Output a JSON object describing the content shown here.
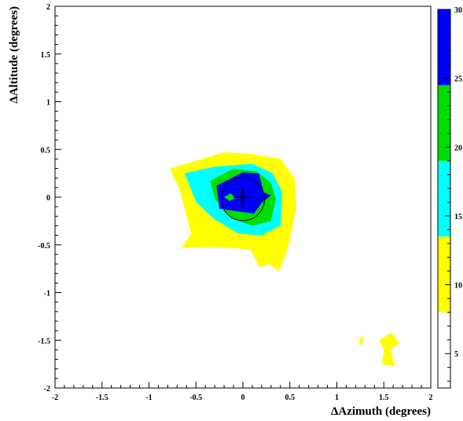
{
  "chart_data": {
    "type": "heatmap",
    "subtype": "filled-contour",
    "xlabel": "ΔAzimuth (degrees)",
    "ylabel": "ΔAltitude (degrees)",
    "xlim": [
      -2.0,
      2.0
    ],
    "ylim": [
      -2.0,
      2.0
    ],
    "x_ticks": [
      "-2",
      "-1.5",
      "-1",
      "-0.5",
      "0",
      "0.5",
      "1",
      "1.5",
      "2"
    ],
    "x_tick_values": [
      -2,
      -1.5,
      -1,
      -0.5,
      0,
      0.5,
      1,
      1.5,
      2
    ],
    "y_ticks": [
      "2",
      "1.5",
      "1",
      "0.5",
      "0",
      "-0.5",
      "-1",
      "-1.5",
      "-2"
    ],
    "y_tick_values": [
      2,
      1.5,
      1,
      0.5,
      0,
      -0.5,
      -1,
      -1.5,
      -2
    ],
    "colorbar": {
      "ticks": [
        "30",
        "25",
        "20",
        "15",
        "10",
        "5"
      ],
      "tick_values": [
        30,
        25,
        20,
        15,
        10,
        5
      ],
      "min": 2.5,
      "max": 30,
      "bands": [
        {
          "from": 2.5,
          "to": 8,
          "color": "#ffffff"
        },
        {
          "from": 8,
          "to": 13.5,
          "color": "#ffff00"
        },
        {
          "from": 13.5,
          "to": 19,
          "color": "#00ffff"
        },
        {
          "from": 19,
          "to": 24.5,
          "color": "#00dd00"
        },
        {
          "from": 24.5,
          "to": 30,
          "color": "#0000ff"
        }
      ]
    },
    "contours": [
      {
        "level": 8,
        "color": "#ffff00",
        "points": [
          [
            -0.78,
            0.3
          ],
          [
            -0.5,
            0.38
          ],
          [
            -0.2,
            0.47
          ],
          [
            0.1,
            0.45
          ],
          [
            0.4,
            0.4
          ],
          [
            0.55,
            0.2
          ],
          [
            0.57,
            -0.1
          ],
          [
            0.5,
            -0.45
          ],
          [
            0.45,
            -0.62
          ],
          [
            0.38,
            -0.78
          ],
          [
            0.28,
            -0.7
          ],
          [
            0.18,
            -0.74
          ],
          [
            0.08,
            -0.55
          ],
          [
            -0.3,
            -0.52
          ],
          [
            -0.65,
            -0.53
          ],
          [
            -0.55,
            -0.38
          ],
          [
            -0.62,
            -0.12
          ],
          [
            -0.68,
            0.1
          ]
        ]
      },
      {
        "level": 8,
        "color": "#ffff00",
        "points": [
          [
            1.23,
            -1.5
          ],
          [
            1.28,
            -1.45
          ],
          [
            1.27,
            -1.57
          ]
        ]
      },
      {
        "level": 8,
        "color": "#ffff00",
        "points": [
          [
            1.45,
            -1.5
          ],
          [
            1.58,
            -1.42
          ],
          [
            1.67,
            -1.53
          ],
          [
            1.57,
            -1.6
          ],
          [
            1.62,
            -1.77
          ],
          [
            1.48,
            -1.75
          ],
          [
            1.5,
            -1.6
          ]
        ]
      },
      {
        "level": 13.5,
        "color": "#00ffff",
        "points": [
          [
            -0.62,
            0.25
          ],
          [
            -0.3,
            0.32
          ],
          [
            0.1,
            0.35
          ],
          [
            0.32,
            0.25
          ],
          [
            0.42,
            0.05
          ],
          [
            0.4,
            -0.3
          ],
          [
            0.2,
            -0.4
          ],
          [
            -0.05,
            -0.38
          ],
          [
            -0.32,
            -0.22
          ],
          [
            -0.5,
            -0.05
          ]
        ]
      },
      {
        "level": 19,
        "color": "#00dd00",
        "points": [
          [
            -0.35,
            0.17
          ],
          [
            -0.1,
            0.3
          ],
          [
            0.15,
            0.27
          ],
          [
            0.3,
            0.15
          ],
          [
            0.35,
            -0.02
          ],
          [
            0.3,
            -0.25
          ],
          [
            0.1,
            -0.3
          ],
          [
            -0.12,
            -0.22
          ],
          [
            -0.3,
            -0.02
          ]
        ]
      },
      {
        "level": 24.5,
        "color": "#0000ff",
        "points": [
          [
            -0.28,
            0.12
          ],
          [
            0.0,
            0.26
          ],
          [
            0.17,
            0.25
          ],
          [
            0.22,
            0.05
          ],
          [
            0.3,
            0.02
          ],
          [
            0.2,
            -0.06
          ],
          [
            0.12,
            -0.17
          ],
          [
            -0.05,
            -0.15
          ],
          [
            -0.25,
            -0.12
          ]
        ]
      },
      {
        "level": 19,
        "color": "#00dd00",
        "points": [
          [
            -0.2,
            0.0
          ],
          [
            -0.13,
            0.04
          ],
          [
            -0.08,
            -0.01
          ],
          [
            -0.14,
            -0.04
          ]
        ]
      }
    ],
    "marker": {
      "type": "cross",
      "x": 0.0,
      "y": 0.0
    },
    "circle": {
      "cx": 0.0,
      "cy": -0.02,
      "r": 0.23
    },
    "grid": false
  }
}
